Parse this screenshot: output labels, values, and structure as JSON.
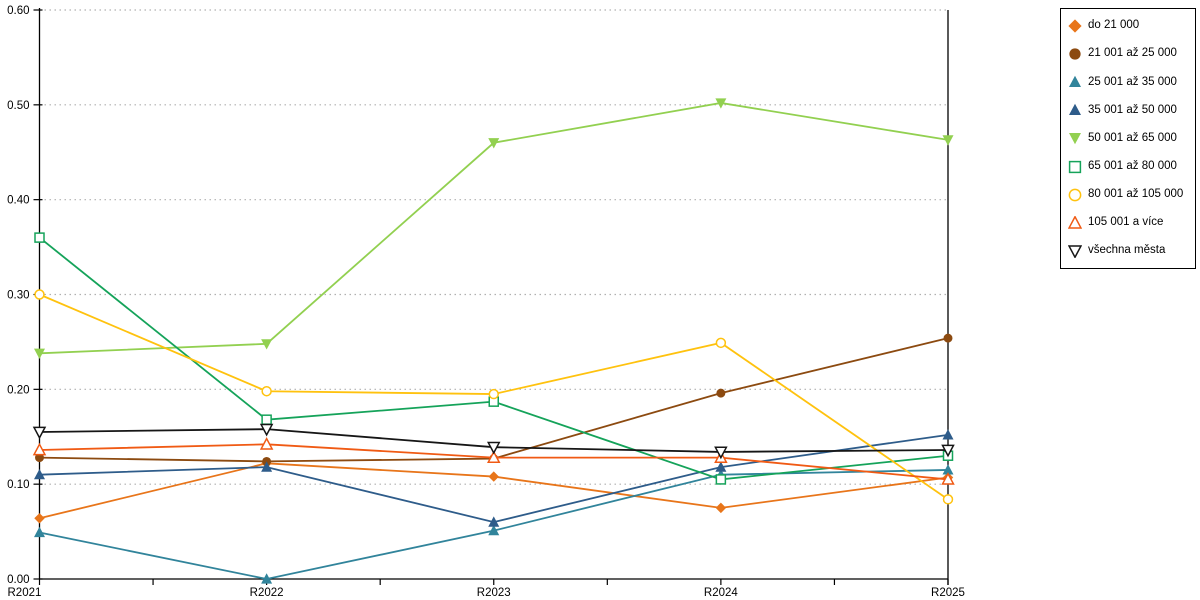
{
  "chart_data": {
    "type": "line",
    "title": "",
    "xlabel": "",
    "ylabel": "",
    "categories": [
      "R2021",
      "R2022",
      "R2023",
      "R2024",
      "R2025"
    ],
    "series": [
      {
        "name": "do 21 000",
        "color": "#E8751A",
        "marker": "diamond",
        "marker_fill": "solid",
        "values": [
          0.064,
          0.122,
          0.108,
          0.075,
          0.107
        ]
      },
      {
        "name": "21 001 až 25 000",
        "color": "#8C4A10",
        "marker": "circle",
        "marker_fill": "solid",
        "values": [
          0.128,
          0.124,
          0.127,
          0.196,
          0.254
        ]
      },
      {
        "name": "25 001 až 35 000",
        "color": "#31849B",
        "marker": "triangle-up",
        "marker_fill": "solid",
        "values": [
          0.049,
          0.0,
          0.051,
          0.11,
          0.115
        ]
      },
      {
        "name": "35 001 až 50 000",
        "color": "#2E5C8A",
        "marker": "triangle-up",
        "marker_fill": "solid",
        "values": [
          0.11,
          0.118,
          0.06,
          0.118,
          0.152
        ]
      },
      {
        "name": "50 001 až 65 000",
        "color": "#92D050",
        "marker": "triangle-down",
        "marker_fill": "solid",
        "values": [
          0.238,
          0.248,
          0.46,
          0.502,
          0.463
        ]
      },
      {
        "name": "65 001 až 80 000",
        "color": "#15A35A",
        "marker": "square",
        "marker_fill": "open",
        "values": [
          0.36,
          0.168,
          0.187,
          0.105,
          0.13
        ]
      },
      {
        "name": "80 001 až 105 000",
        "color": "#FFC20E",
        "marker": "circle",
        "marker_fill": "open",
        "values": [
          0.3,
          0.198,
          0.195,
          0.249,
          0.084
        ]
      },
      {
        "name": "105 001 a více",
        "color": "#F05A14",
        "marker": "triangle-up",
        "marker_fill": "open",
        "values": [
          0.136,
          0.142,
          0.128,
          0.128,
          0.105
        ]
      },
      {
        "name": "všechna města",
        "color": "#161616",
        "marker": "triangle-down",
        "marker_fill": "open",
        "values": [
          0.155,
          0.158,
          0.139,
          0.134,
          0.136
        ]
      }
    ],
    "ylim": [
      0.0,
      0.6
    ],
    "ytick_step": 0.1,
    "ytick_labels": [
      "0.00",
      "0.10",
      "0.20",
      "0.30",
      "0.40",
      "0.50",
      "0.60"
    ],
    "grid": "horizontal dotted lines at each 0.10",
    "legend_position": "top-right, boxed"
  },
  "colors": {
    "background": "#FFFFFF",
    "axis": "#000000",
    "grid": "#B0B0B0",
    "tick_label": "#000000"
  }
}
